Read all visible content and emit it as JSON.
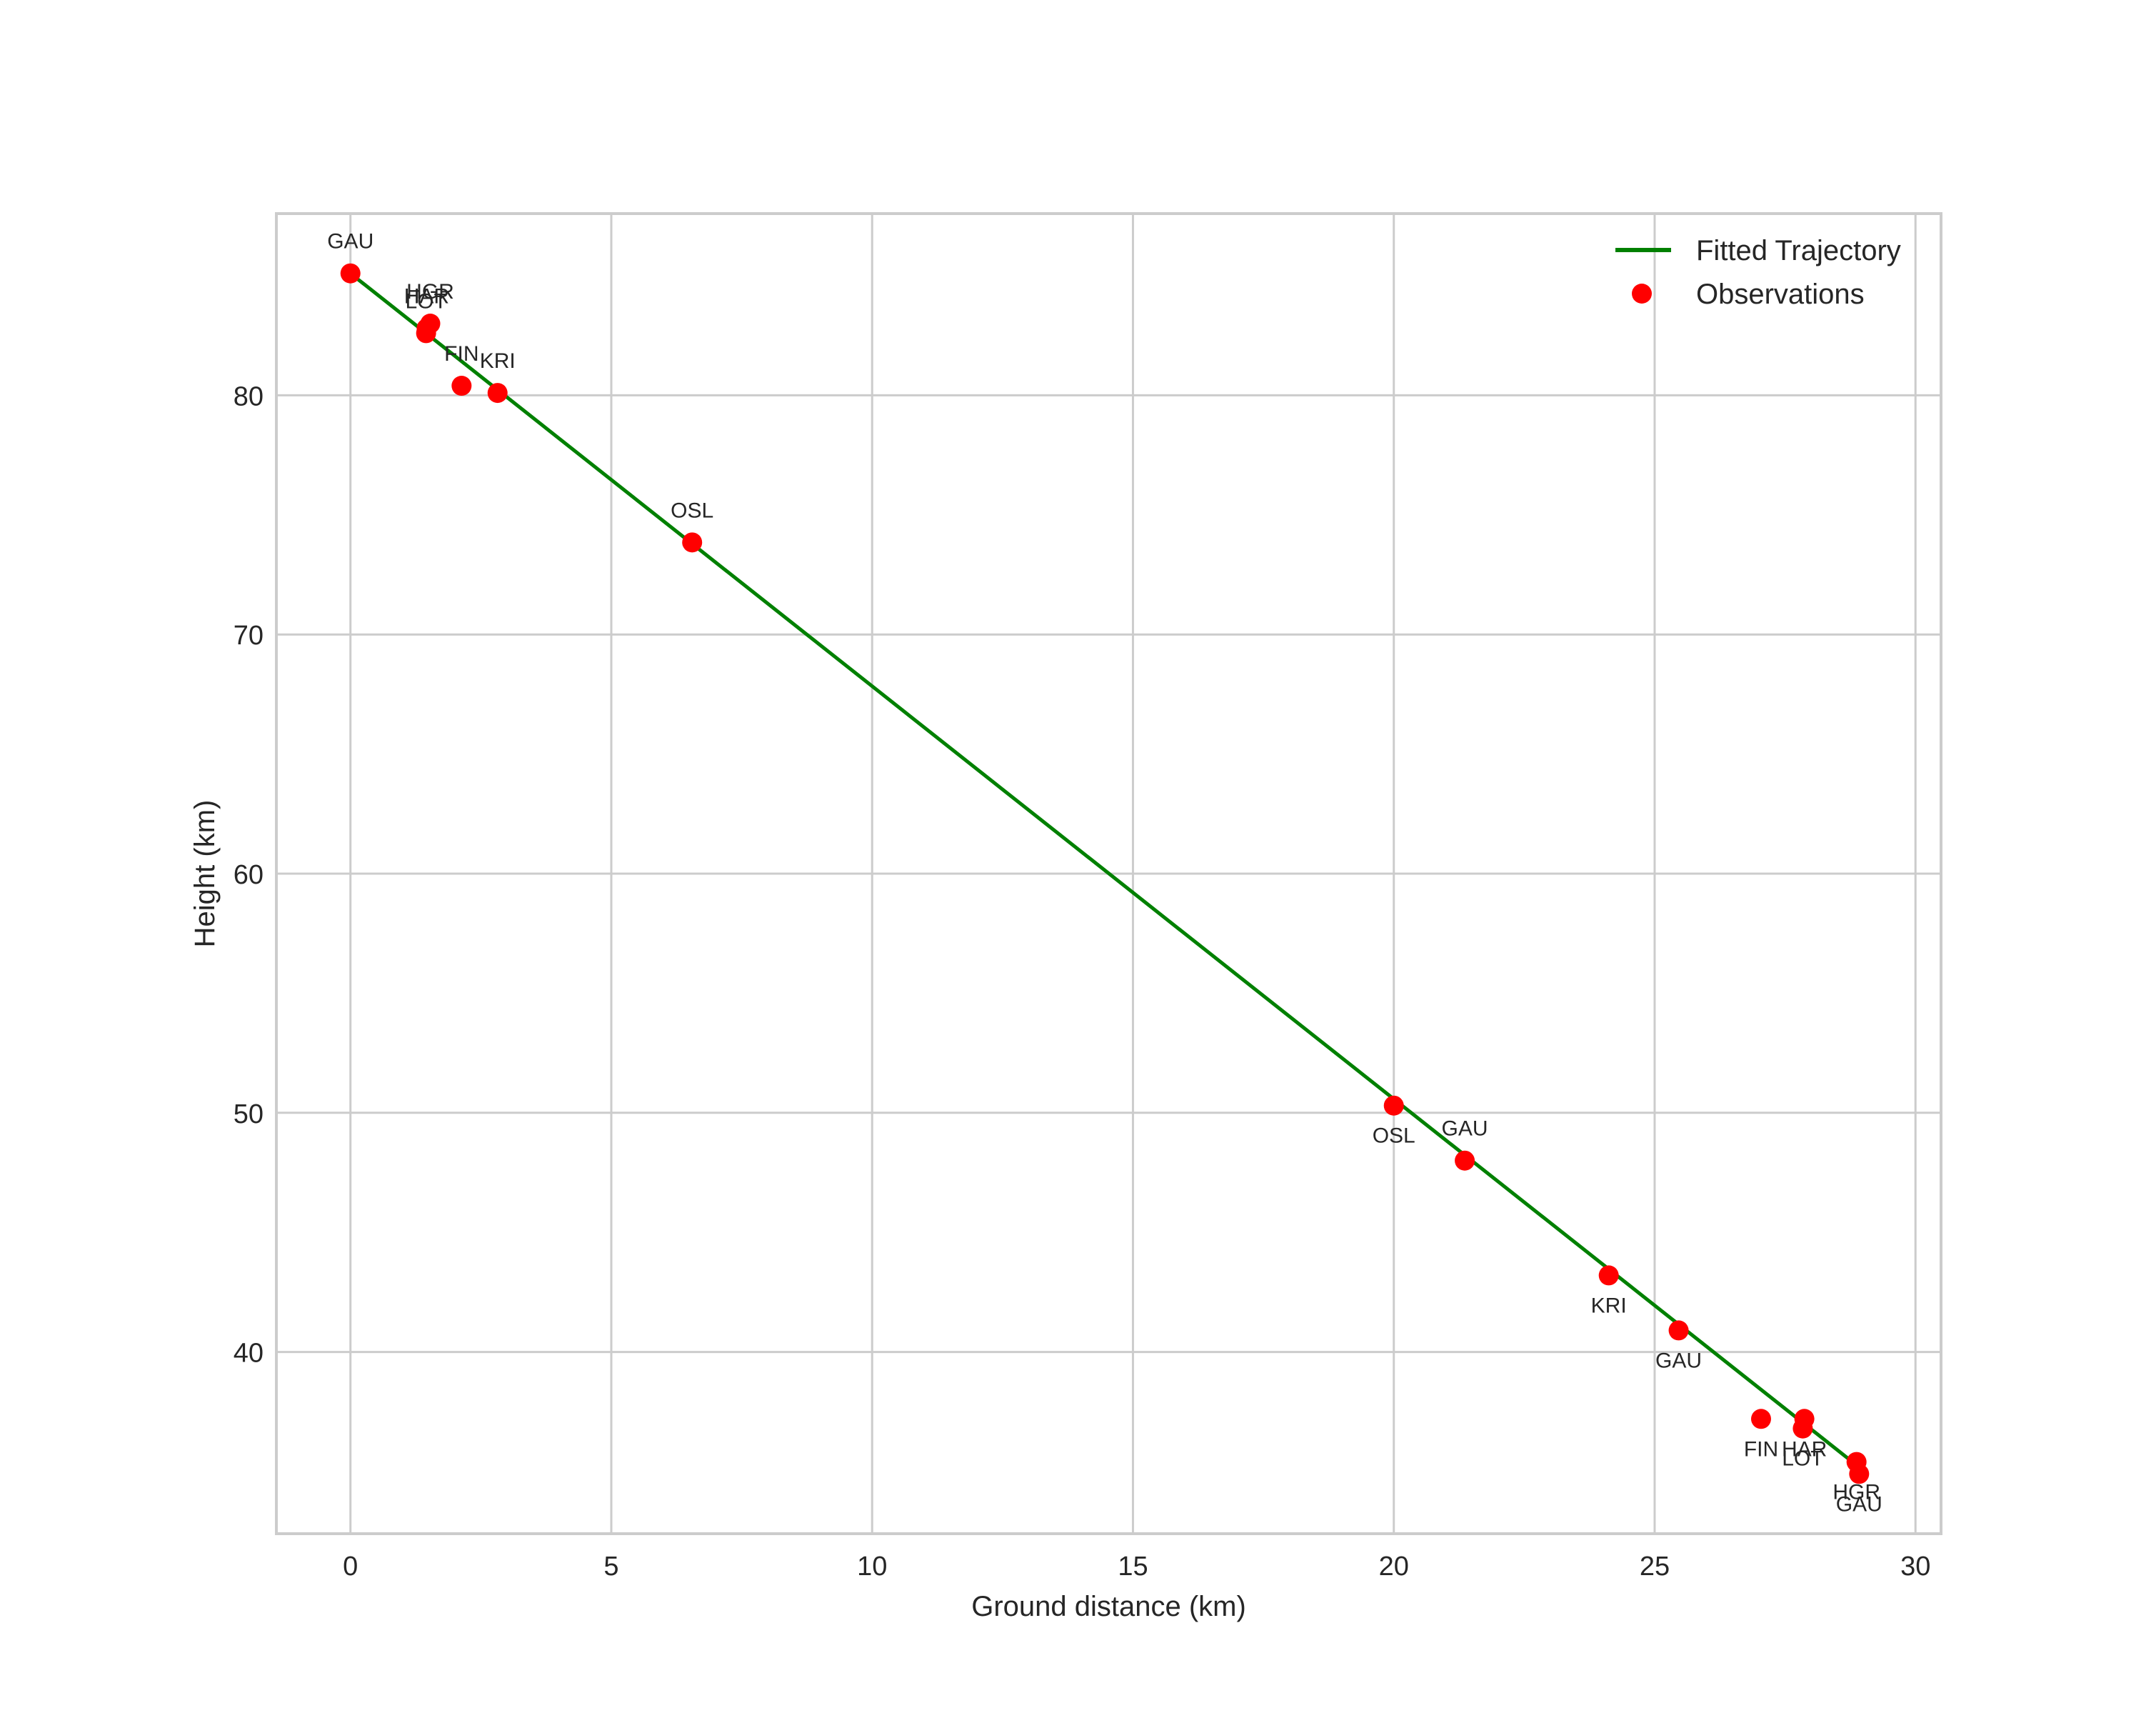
{
  "chart_data": {
    "type": "line+scatter",
    "title": "",
    "xlabel": "Ground distance (km)",
    "ylabel": "Height (km)",
    "xlim": [
      -1.42,
      30.49
    ],
    "ylim": [
      32.4,
      87.6
    ],
    "xticks": [
      0,
      5,
      10,
      15,
      20,
      25,
      30
    ],
    "yticks": [
      40,
      50,
      60,
      70,
      80
    ],
    "grid": true,
    "legend_position": "upper right",
    "series": [
      {
        "name": "Fitted Trajectory",
        "type": "line",
        "color": "#008000",
        "x": [
          0.0,
          28.85
        ],
        "y": [
          85.1,
          35.3
        ]
      },
      {
        "name": "Observations",
        "type": "scatter",
        "color": "#ff0000",
        "points": [
          {
            "label": "GAU",
            "x": 0.0,
            "y": 85.1,
            "label_pos": "above"
          },
          {
            "label": "HGR",
            "x": 1.53,
            "y": 83.0,
            "label_pos": "above"
          },
          {
            "label": "HAR",
            "x": 1.46,
            "y": 82.8,
            "label_pos": "above"
          },
          {
            "label": "LOT",
            "x": 1.45,
            "y": 82.6,
            "label_pos": "above"
          },
          {
            "label": "FIN",
            "x": 2.13,
            "y": 80.4,
            "label_pos": "above"
          },
          {
            "label": "KRI",
            "x": 2.82,
            "y": 80.1,
            "label_pos": "above"
          },
          {
            "label": "OSL",
            "x": 6.55,
            "y": 73.85,
            "label_pos": "above"
          },
          {
            "label": "OSL",
            "x": 20.0,
            "y": 50.3,
            "label_pos": "below"
          },
          {
            "label": "GAU",
            "x": 21.36,
            "y": 48.0,
            "label_pos": "above"
          },
          {
            "label": "KRI",
            "x": 24.12,
            "y": 43.2,
            "label_pos": "below"
          },
          {
            "label": "GAU",
            "x": 25.46,
            "y": 40.9,
            "label_pos": "below"
          },
          {
            "label": "FIN",
            "x": 27.04,
            "y": 37.2,
            "label_pos": "below"
          },
          {
            "label": "HAR",
            "x": 27.87,
            "y": 37.2,
            "label_pos": "below"
          },
          {
            "label": "LOT",
            "x": 27.84,
            "y": 36.8,
            "label_pos": "below"
          },
          {
            "label": "HGR",
            "x": 28.87,
            "y": 35.4,
            "label_pos": "below"
          },
          {
            "label": "GAU",
            "x": 28.92,
            "y": 34.9,
            "label_pos": "below"
          }
        ]
      }
    ]
  },
  "legend": {
    "items": [
      {
        "label": "Fitted Trajectory",
        "marker": "line",
        "color": "#008000"
      },
      {
        "label": "Observations",
        "marker": "dot",
        "color": "#ff0000"
      }
    ]
  },
  "colors": {
    "grid": "#cccccc",
    "frame": "#cccccc",
    "text": "#262626",
    "background": "#ffffff"
  }
}
